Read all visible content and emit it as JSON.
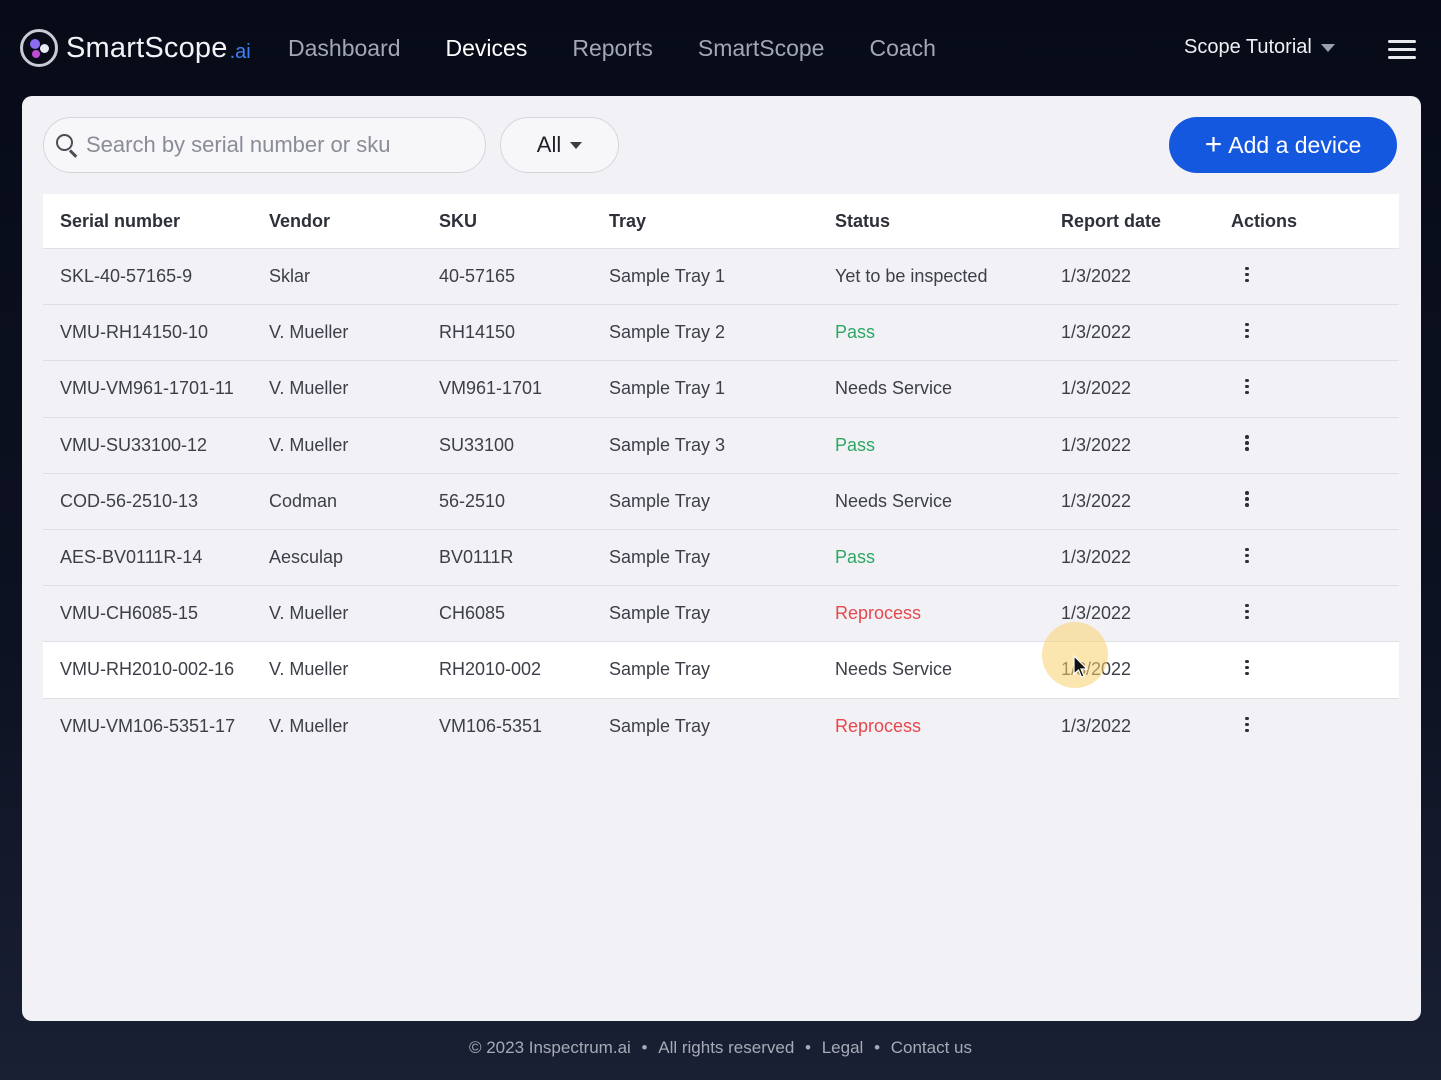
{
  "header": {
    "logo": {
      "brand": "SmartScope",
      "suffix": ".ai"
    },
    "nav": [
      {
        "label": "Dashboard",
        "active": false
      },
      {
        "label": "Devices",
        "active": true
      },
      {
        "label": "Reports",
        "active": false
      },
      {
        "label": "SmartScope",
        "active": false
      },
      {
        "label": "Coach",
        "active": false
      }
    ],
    "user_menu": "Scope Tutorial",
    "menu_icon": "hamburger-icon"
  },
  "toolbar": {
    "search_placeholder": "Search by serial number or sku",
    "search_value": "",
    "filter_value": "All",
    "add_button_label": "Add a device",
    "add_button_icon": "plus-icon",
    "accent_color": "#1558e0"
  },
  "table": {
    "columns": [
      "Serial number",
      "Vendor",
      "SKU",
      "Tray",
      "Status",
      "Report date",
      "Actions"
    ],
    "rows": [
      {
        "serial": "SKL-40-57165-9",
        "vendor": "Sklar",
        "sku": "40-57165",
        "tray": "Sample Tray 1",
        "status": "Yet to be inspected",
        "date": "1/3/2022"
      },
      {
        "serial": "VMU-RH14150-10",
        "vendor": "V. Mueller",
        "sku": "RH14150",
        "tray": "Sample Tray 2",
        "status": "Pass",
        "date": "1/3/2022"
      },
      {
        "serial": "VMU-VM961-1701-11",
        "vendor": "V. Mueller",
        "sku": "VM961-1701",
        "tray": "Sample Tray 1",
        "status": "Needs Service",
        "date": "1/3/2022"
      },
      {
        "serial": "VMU-SU33100-12",
        "vendor": "V. Mueller",
        "sku": "SU33100",
        "tray": "Sample Tray 3",
        "status": "Pass",
        "date": "1/3/2022"
      },
      {
        "serial": "COD-56-2510-13",
        "vendor": "Codman",
        "sku": "56-2510",
        "tray": "Sample Tray",
        "status": "Needs Service",
        "date": "1/3/2022"
      },
      {
        "serial": "AES-BV0111R-14",
        "vendor": "Aesculap",
        "sku": "BV0111R",
        "tray": "Sample Tray",
        "status": "Pass",
        "date": "1/3/2022"
      },
      {
        "serial": "VMU-CH6085-15",
        "vendor": "V. Mueller",
        "sku": "CH6085",
        "tray": "Sample Tray",
        "status": "Reprocess",
        "date": "1/3/2022"
      },
      {
        "serial": "VMU-RH2010-002-16",
        "vendor": "V. Mueller",
        "sku": "RH2010-002",
        "tray": "Sample Tray",
        "status": "Needs Service",
        "date": "1/3/2022"
      },
      {
        "serial": "VMU-VM106-5351-17",
        "vendor": "V. Mueller",
        "sku": "VM106-5351",
        "tray": "Sample Tray",
        "status": "Reprocess",
        "date": "1/3/2022"
      }
    ],
    "status_colors": {
      "Pass": "#2ea664",
      "Reprocess": "#e5484d"
    },
    "action_icon": "kebab-menu-icon"
  },
  "footer": {
    "copyright": "© 2023 Inspectrum.ai",
    "rights": "All rights reserved",
    "legal": "Legal",
    "contact": "Contact us",
    "separator": "•"
  }
}
